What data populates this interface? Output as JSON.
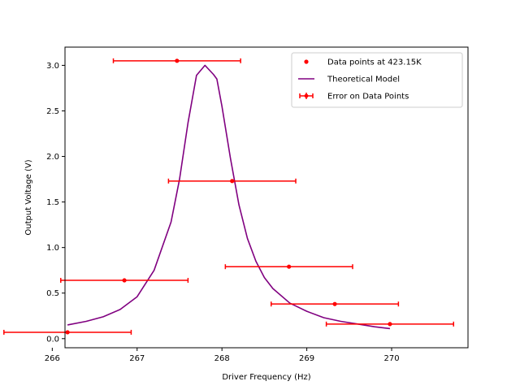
{
  "chart_data": {
    "type": "scatter",
    "title": "",
    "xlabel": "Driver Frequency (Hz)",
    "ylabel": "Output Voltage (V)",
    "xlim": [
      266.15,
      270.9
    ],
    "ylim": [
      -0.1,
      3.2
    ],
    "xticks": [
      266,
      267,
      268,
      269,
      270
    ],
    "yticks": [
      0.0,
      0.5,
      1.0,
      1.5,
      2.0,
      2.5,
      3.0
    ],
    "xtick_labels": [
      "266",
      "267",
      "268",
      "269",
      "270"
    ],
    "ytick_labels": [
      "0.0",
      "0.5",
      "1.0",
      "1.5",
      "2.0",
      "2.5",
      "3.0"
    ],
    "grid": false,
    "legend_position": "top-right",
    "series": [
      {
        "name": "Data points at 423.15K",
        "kind": "points",
        "color": "#ff0000",
        "x": [
          266.18,
          266.85,
          267.47,
          268.12,
          268.79,
          269.33,
          269.98
        ],
        "y": [
          0.07,
          0.64,
          3.05,
          1.73,
          0.79,
          0.38,
          0.16
        ],
        "xerr": [
          0.75,
          0.75,
          0.75,
          0.75,
          0.75,
          0.75,
          0.75
        ]
      },
      {
        "name": "Theoretical Model",
        "kind": "line",
        "color": "#800080",
        "x": [
          266.18,
          266.4,
          266.6,
          266.8,
          267.0,
          267.2,
          267.4,
          267.5,
          267.6,
          267.7,
          267.8,
          267.9,
          267.94,
          268.0,
          268.1,
          268.2,
          268.3,
          268.4,
          268.5,
          268.6,
          268.8,
          269.0,
          269.2,
          269.4,
          269.6,
          269.8,
          269.98
        ],
        "y": [
          0.15,
          0.19,
          0.24,
          0.32,
          0.46,
          0.75,
          1.28,
          1.75,
          2.37,
          2.89,
          3.0,
          2.9,
          2.85,
          2.55,
          1.98,
          1.47,
          1.1,
          0.85,
          0.67,
          0.55,
          0.39,
          0.3,
          0.23,
          0.19,
          0.16,
          0.13,
          0.11
        ]
      },
      {
        "name": "Error on Data Points",
        "kind": "errorbar-legend",
        "color": "#ff0000"
      }
    ]
  }
}
